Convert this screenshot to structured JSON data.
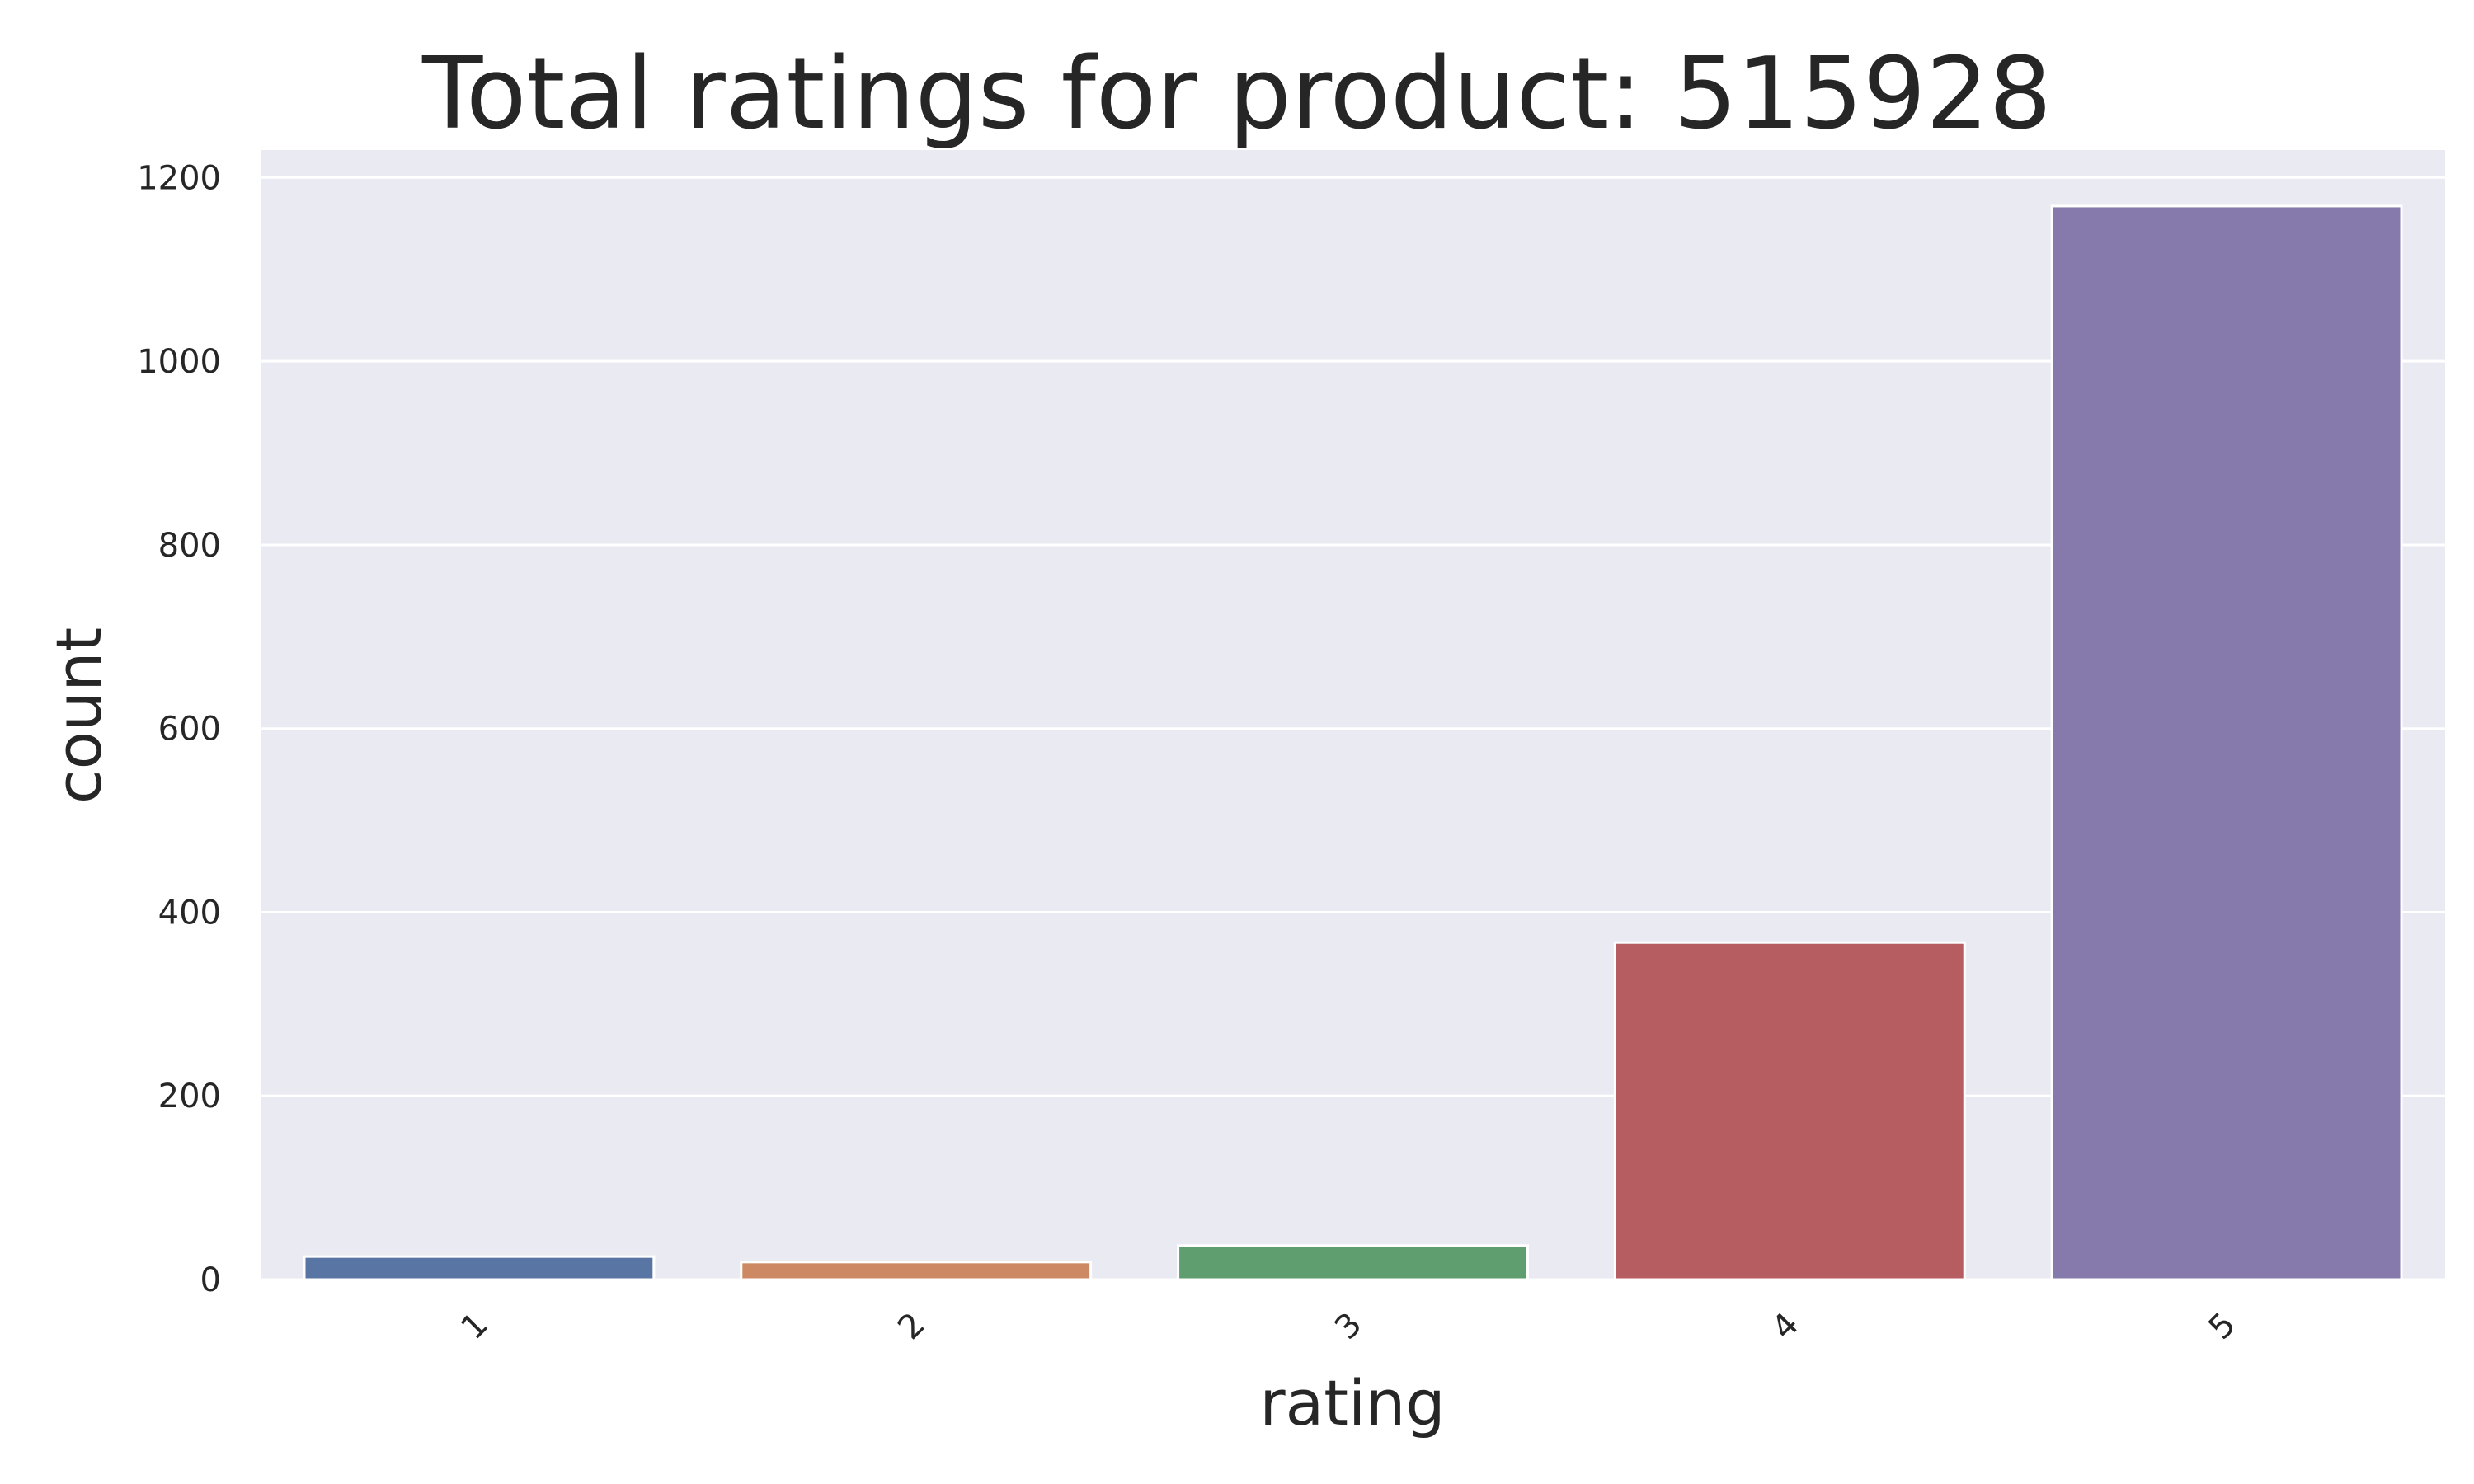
{
  "chart_data": {
    "type": "bar",
    "title": "Total ratings for product: 515928",
    "xlabel": "rating",
    "ylabel": "count",
    "categories": [
      "1",
      "2",
      "3",
      "4",
      "5"
    ],
    "values": [
      25,
      19,
      37,
      367,
      1169
    ],
    "colors": [
      "#5975a4",
      "#cc8963",
      "#5f9e6e",
      "#b55d60",
      "#857aab"
    ],
    "ylim": [
      0,
      1230
    ],
    "yticks": [
      0,
      200,
      400,
      600,
      800,
      1000,
      1200
    ],
    "ytick_labels": [
      "0",
      "200",
      "400",
      "600",
      "800",
      "1000",
      "1200"
    ],
    "grid": true,
    "background": "#eaeaf2",
    "xtick_rotation": -45
  }
}
